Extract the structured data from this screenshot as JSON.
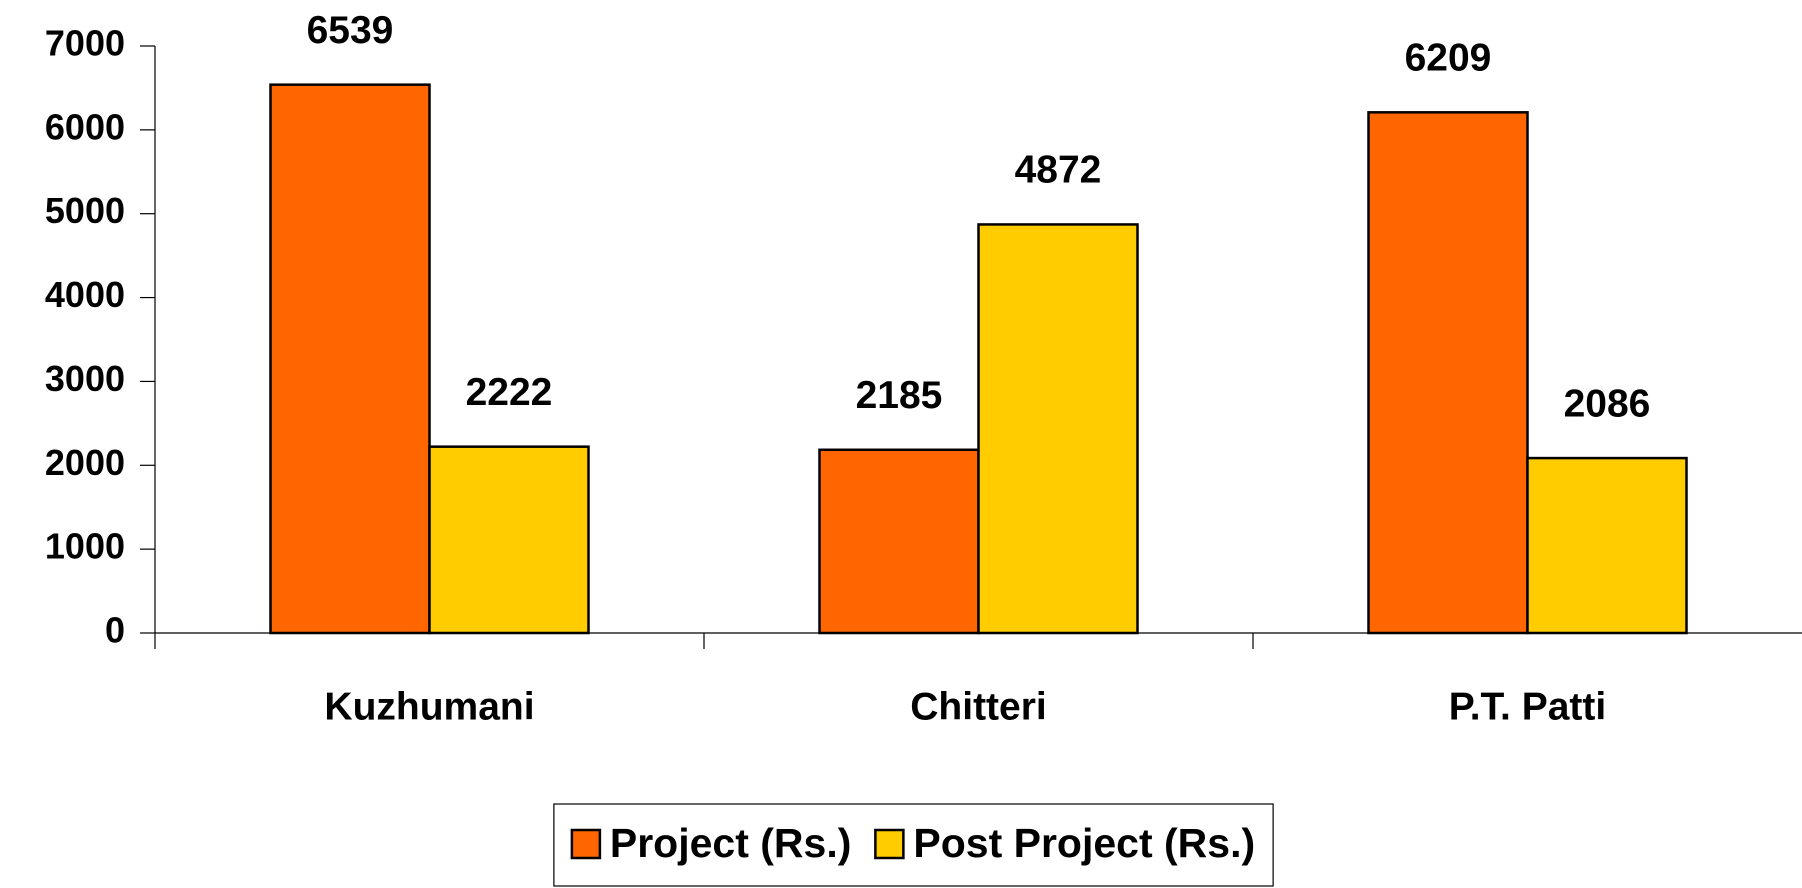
{
  "chart_data": {
    "type": "bar",
    "categories": [
      "Kuzhumani",
      "Chitteri",
      "P.T. Patti"
    ],
    "series": [
      {
        "name": "Project (Rs.)",
        "color": "#ff6600",
        "values": [
          6539,
          2185,
          6209
        ]
      },
      {
        "name": "Post Project (Rs.)",
        "color": "#ffcc00",
        "values": [
          2222,
          4872,
          2086
        ]
      }
    ],
    "ylim": [
      0,
      7000
    ],
    "yticks": [
      0,
      1000,
      2000,
      3000,
      4000,
      5000,
      6000,
      7000
    ],
    "grid": false,
    "legend": "bottom",
    "data_labels": true
  }
}
